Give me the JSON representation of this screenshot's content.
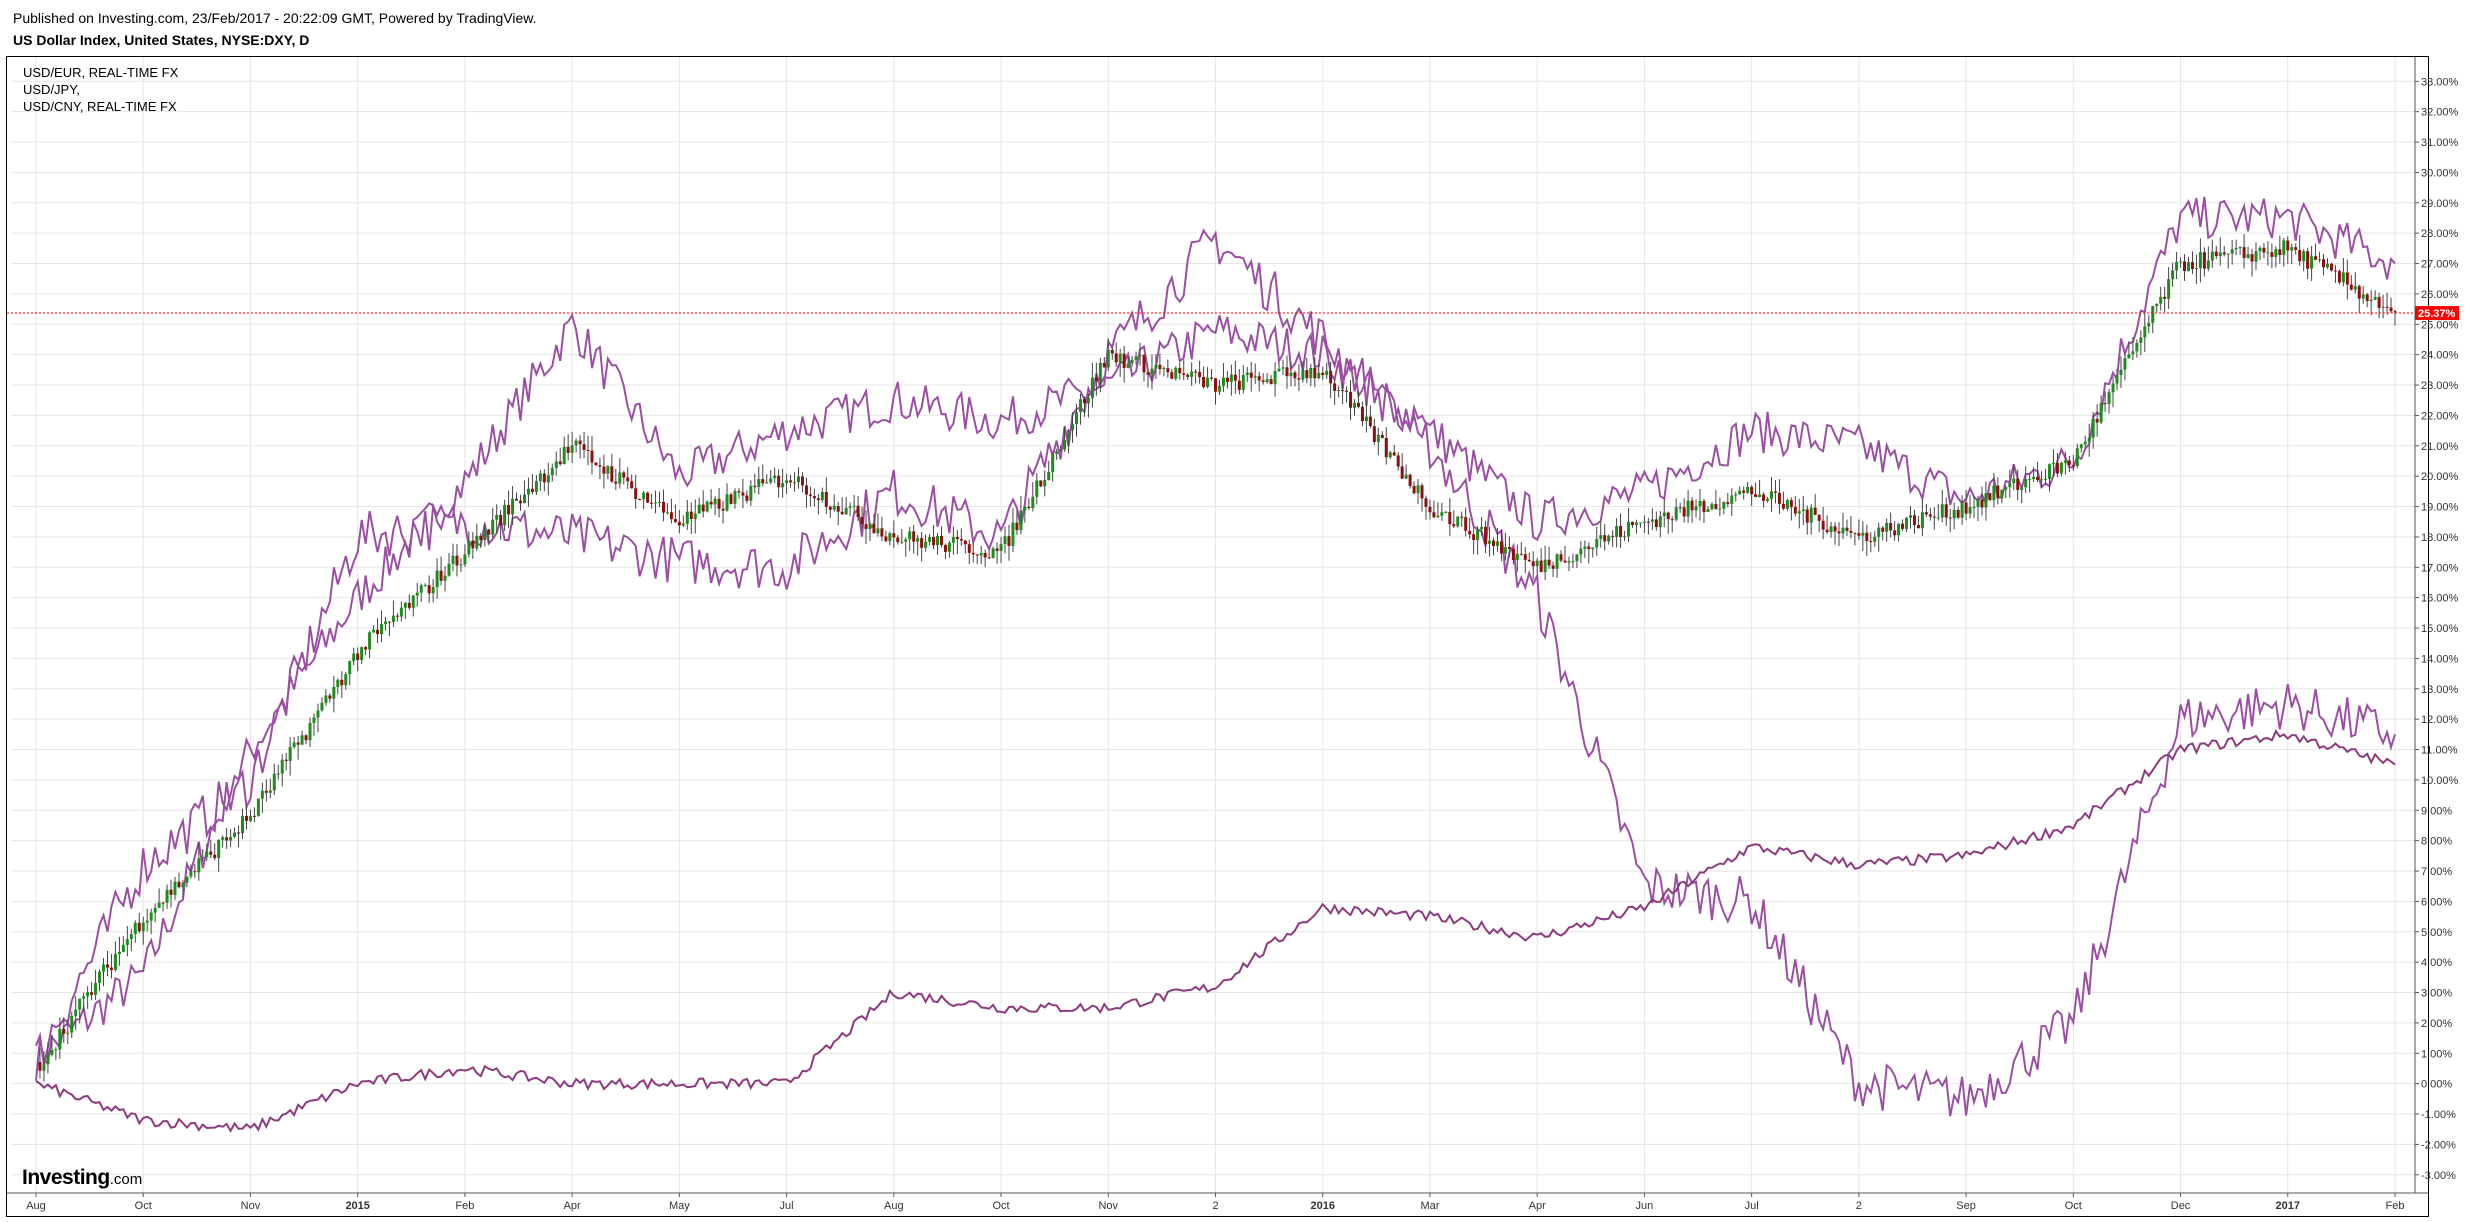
{
  "header": {
    "published": "Published on Investing.com, 23/Feb/2017 - 20:22:09 GMT, Powered by TradingView.",
    "title": "US Dollar Index, United States, NYSE:DXY, D"
  },
  "legend": [
    "USD/EUR, REAL-TIME FX",
    "USD/JPY,",
    "USD/CNY, REAL-TIME FX"
  ],
  "logo": {
    "brand": "Investing",
    "suffix": ".com"
  },
  "chart_data": {
    "type": "line",
    "y_unit": "%",
    "ylim": [
      -3.6,
      33.8
    ],
    "y_ticks": [
      "33.00%",
      "32.00%",
      "31.00%",
      "30.00%",
      "29.00%",
      "28.00%",
      "27.00%",
      "26.00%",
      "25.00%",
      "24.00%",
      "23.00%",
      "22.00%",
      "21.00%",
      "20.00%",
      "19.00%",
      "18.00%",
      "17.00%",
      "16.00%",
      "15.00%",
      "14.00%",
      "13.00%",
      "12.00%",
      "11.00%",
      "10.00%",
      "9.00%",
      "8.00%",
      "7.00%",
      "6.00%",
      "5.00%",
      "4.00%",
      "3.00%",
      "2.00%",
      "1.00%",
      "0.00%",
      "-1.00%",
      "-2.00%",
      "-3.00%"
    ],
    "x_ticks": [
      "Aug",
      "Oct",
      "Nov",
      "2015",
      "Feb",
      "Apr",
      "May",
      "Jul",
      "Aug",
      "Oct",
      "Nov",
      "2",
      "2016",
      "Mar",
      "Apr",
      "Jun",
      "Jul",
      "2",
      "Sep",
      "Oct",
      "Dec",
      "2017",
      "Feb"
    ],
    "x_tick_bold": [
      "2015",
      "2016",
      "2017"
    ],
    "grid": true,
    "current_value_label": "25.37%",
    "current_value": 25.37,
    "colors": {
      "candle_up": "#1e8c1e",
      "candle_down": "#8c1010",
      "series_line": "#9b4fa3",
      "series_line_dark": "#8e3a7e",
      "current_marker": "#ff0000"
    },
    "x": [
      "Aug",
      "Oct",
      "Nov",
      "2015",
      "Feb",
      "Apr",
      "May",
      "Jul",
      "Aug",
      "Oct",
      "Nov",
      "2",
      "2016",
      "Mar",
      "Apr",
      "Jun",
      "Jul",
      "2",
      "Sep",
      "Oct",
      "Dec",
      "2017",
      "Feb"
    ],
    "series": [
      {
        "name": "USD/EUR, REAL-TIME FX",
        "values": [
          0.8,
          3.6,
          11.0,
          16.0,
          19.8,
          25.0,
          20.0,
          21.5,
          22.5,
          21.8,
          23.0,
          24.8,
          24.0,
          21.5,
          18.5,
          19.5,
          21.5,
          21.0,
          19.2,
          20.5,
          28.5,
          28.5,
          27.0
        ]
      },
      {
        "name": "USD/JPY,",
        "values": [
          0.8,
          7.2,
          10.0,
          18.0,
          18.5,
          18.0,
          17.2,
          17.0,
          19.5,
          18.0,
          24.0,
          27.8,
          24.5,
          21.0,
          16.0,
          6.5,
          6.0,
          0.0,
          -0.5,
          2.0,
          12.0,
          12.5,
          11.5
        ]
      },
      {
        "name": "USD/CNY, REAL-TIME FX",
        "values": [
          0.0,
          -1.2,
          -1.5,
          0.0,
          0.5,
          0.0,
          0.0,
          0.0,
          3.0,
          2.5,
          2.5,
          3.2,
          5.8,
          5.5,
          4.8,
          5.8,
          7.8,
          7.2,
          7.5,
          8.5,
          11.0,
          11.5,
          10.5
        ]
      },
      {
        "name": "US Dollar Index, United States, NYSE:DXY, D",
        "values": [
          0.5,
          5.5,
          8.8,
          14.2,
          17.5,
          21.0,
          18.5,
          20.0,
          18.0,
          17.5,
          24.0,
          23.0,
          23.5,
          19.0,
          17.0,
          18.5,
          19.5,
          18.0,
          19.0,
          20.5,
          27.0,
          27.5,
          25.4
        ]
      }
    ]
  }
}
